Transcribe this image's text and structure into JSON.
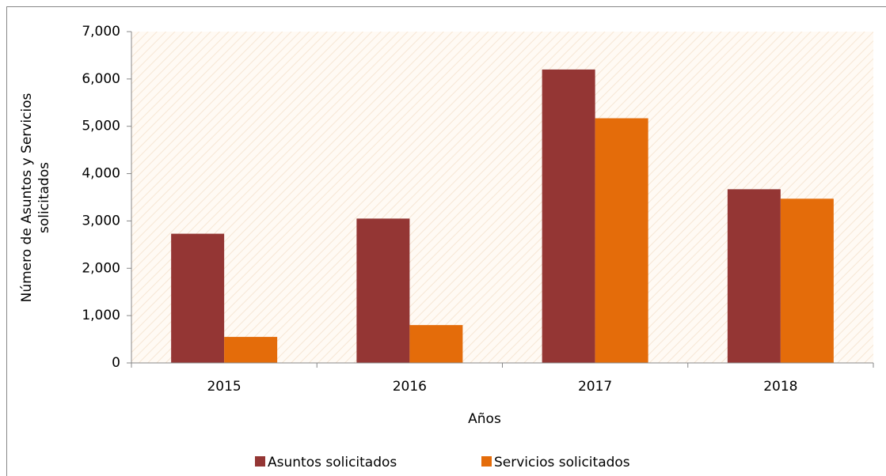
{
  "chart_data": {
    "type": "bar",
    "ylabel": [
      "Número de Asuntos y Servicios",
      "solicitados"
    ],
    "xlabel": "Años",
    "categories": [
      "2015",
      "2016",
      "2017",
      "2018"
    ],
    "series": [
      {
        "name": "Asuntos solicitados",
        "color": "#943634",
        "values": [
          2730,
          3050,
          6200,
          3670
        ]
      },
      {
        "name": "Servicios solicitados",
        "color": "#e46c0a",
        "values": [
          550,
          800,
          5170,
          3470
        ]
      }
    ],
    "ylim": [
      0,
      7000
    ],
    "yticks": [
      0,
      {
        "value": 1000,
        "label": "1,000"
      },
      {
        "value": 2000,
        "label": "2,000"
      },
      {
        "value": 3000,
        "label": "3,000"
      },
      {
        "value": 4000,
        "label": "4,000"
      },
      {
        "value": 5000,
        "label": "5,000"
      },
      {
        "value": 6000,
        "label": "6,000"
      },
      {
        "value": 7000,
        "label": "7,000"
      }
    ],
    "legend": "bottom"
  }
}
